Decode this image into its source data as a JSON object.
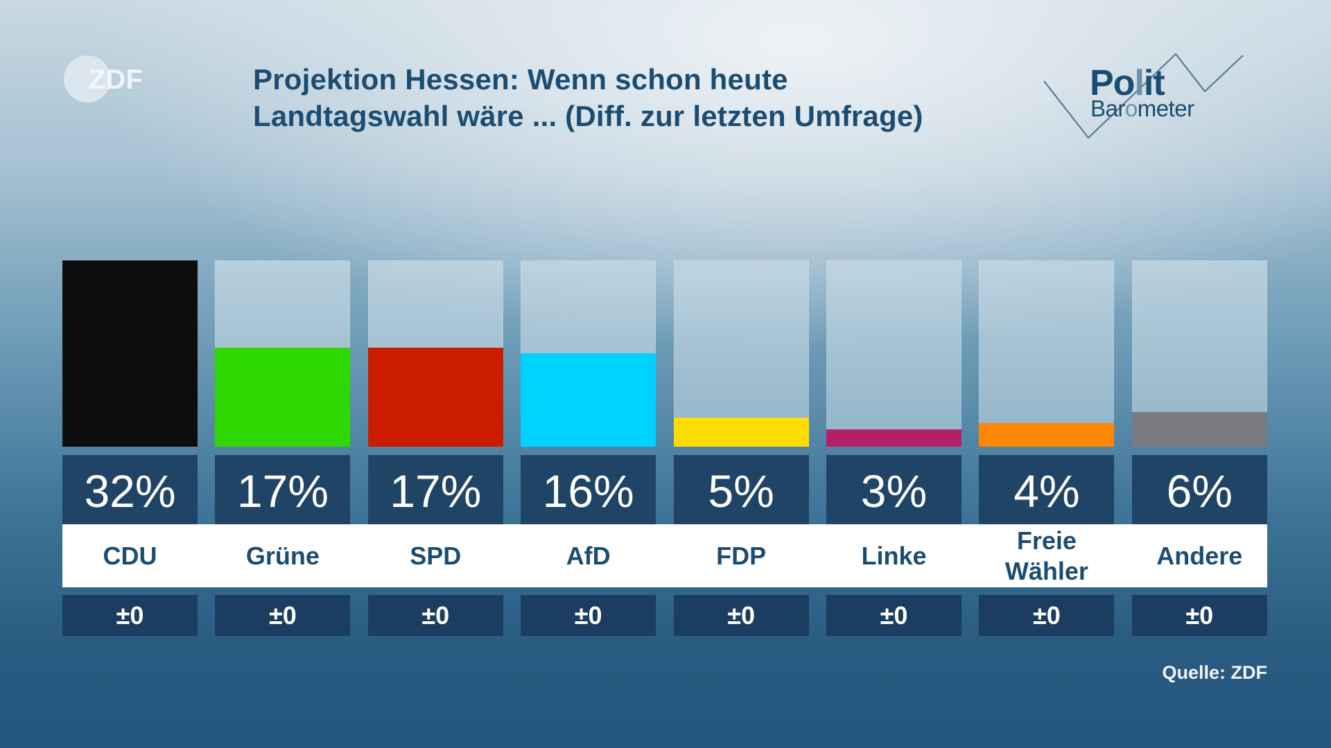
{
  "header": {
    "logo_text": "ZDF",
    "title_line1": "Projektion Hessen: Wenn schon heute",
    "title_line2": "Landtagswahl wäre ... (Diff. zur letzten Umfrage)",
    "brand_line1_a": "Po",
    "brand_line1_b": "l",
    "brand_line1_c": "it",
    "brand_line2_a": "Bar",
    "brand_line2_b": "o",
    "brand_line2_c": "meter"
  },
  "footer": {
    "source": "Quelle: ZDF"
  },
  "chart_data": {
    "type": "bar",
    "title": "Projektion Hessen: Wenn schon heute Landtagswahl wäre ... (Diff. zur letzten Umfrage)",
    "xlabel": "",
    "ylabel": "",
    "ylim": [
      0,
      32
    ],
    "grid": false,
    "categories": [
      "CDU",
      "Grüne",
      "SPD",
      "AfD",
      "FDP",
      "Linke",
      "Freie Wähler",
      "Andere"
    ],
    "values": [
      32,
      17,
      17,
      16,
      5,
      3,
      4,
      6
    ],
    "value_labels": [
      "32%",
      "17%",
      "17%",
      "16%",
      "5%",
      "3%",
      "4%",
      "6%"
    ],
    "diff_labels": [
      "±0",
      "±0",
      "±0",
      "±0",
      "±0",
      "±0",
      "±0",
      "±0"
    ],
    "display_labels": [
      "CDU",
      "Grüne",
      "SPD",
      "AfD",
      "FDP",
      "Linke",
      "Freie\nWähler",
      "Andere"
    ],
    "colors": [
      "#0d0d0d",
      "#2ed800",
      "#cc1c00",
      "#00d2ff",
      "#ffdc00",
      "#b41f66",
      "#ff8600",
      "#7a7b80"
    ],
    "source": "Quelle: ZDF"
  }
}
